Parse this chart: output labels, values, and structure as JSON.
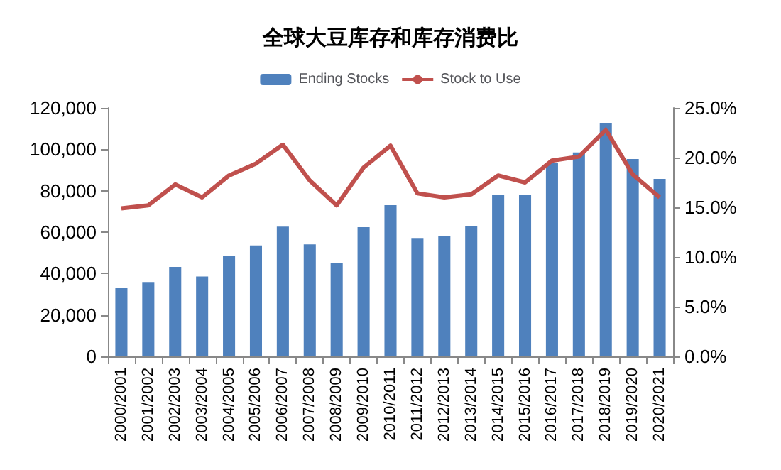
{
  "chart_data": {
    "type": "bar",
    "title": "全球大豆库存和库存消费比",
    "categories": [
      "2000/2001",
      "2001/2002",
      "2002/2003",
      "2003/2004",
      "2004/2005",
      "2005/2006",
      "2006/2007",
      "2007/2008",
      "2008/2009",
      "2009/2010",
      "2010/2011",
      "2011/2012",
      "2012/2013",
      "2013/2014",
      "2014/2015",
      "2015/2016",
      "2016/2017",
      "2017/2018",
      "2018/2019",
      "2019/2020",
      "2020/2021"
    ],
    "series": [
      {
        "name": "Ending Stocks",
        "color": "#4f81bd",
        "values": [
          33200,
          35900,
          43200,
          38600,
          48400,
          53600,
          62700,
          54100,
          45000,
          62400,
          73000,
          57200,
          58000,
          63100,
          78100,
          78100,
          93600,
          98500,
          112800,
          95300,
          85700
        ]
      },
      {
        "name": "Stock to Use",
        "type": "line",
        "axis": "y2",
        "color": "#c0504d",
        "values": [
          14.9,
          15.2,
          17.3,
          16.0,
          18.2,
          19.4,
          21.3,
          17.7,
          15.2,
          19.0,
          21.2,
          16.4,
          16.0,
          16.3,
          18.2,
          17.5,
          19.7,
          20.1,
          22.8,
          18.3,
          16.0
        ]
      }
    ],
    "ylim": [
      0,
      120000
    ],
    "yticks": [
      {
        "value": 0,
        "label": "0"
      },
      {
        "value": 20000,
        "label": "20,000"
      },
      {
        "value": 40000,
        "label": "40,000"
      },
      {
        "value": 60000,
        "label": "60,000"
      },
      {
        "value": 80000,
        "label": "80,000"
      },
      {
        "value": 100000,
        "label": "100,000"
      },
      {
        "value": 120000,
        "label": "120,000"
      }
    ],
    "y2lim": [
      0,
      25
    ],
    "y2ticks": [
      {
        "value": 0,
        "label": "0.0%"
      },
      {
        "value": 5,
        "label": "5.0%"
      },
      {
        "value": 10,
        "label": "10.0%"
      },
      {
        "value": 15,
        "label": "15.0%"
      },
      {
        "value": 20,
        "label": "20.0%"
      },
      {
        "value": 25,
        "label": "25.0%"
      }
    ],
    "legend": "top",
    "grid": false,
    "marker": "none"
  }
}
